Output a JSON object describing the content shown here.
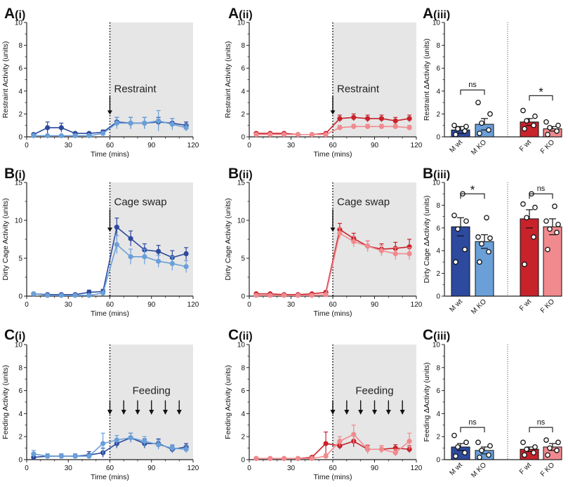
{
  "figure": {
    "colors": {
      "m_wt": "#2d4a9e",
      "m_ko": "#6a9fd8",
      "f_wt": "#c8222b",
      "f_ko": "#f18a8e",
      "shade": "#e6e6e6",
      "axis": "#222222"
    }
  },
  "chart_data": [
    {
      "id": "A-i",
      "type": "line",
      "label": "A",
      "sublabel": "(i)",
      "xlabel": "Time (mins)",
      "ylabel": "Restraint Activity (units)",
      "xlim": [
        0,
        120
      ],
      "ylim": [
        0,
        10
      ],
      "xticks": [
        "0",
        "30",
        "60",
        "90",
        "120"
      ],
      "yticks": [
        "0",
        "2",
        "4",
        "6",
        "8",
        "10"
      ],
      "event_time": 60,
      "annotation": "Restraint",
      "series": [
        {
          "name": "M wt",
          "color": "#2d4a9e",
          "x": [
            5,
            15,
            25,
            35,
            45,
            55,
            65,
            75,
            85,
            95,
            105,
            115
          ],
          "y": [
            0.2,
            0.8,
            0.8,
            0.3,
            0.3,
            0.4,
            1.3,
            1.2,
            1.2,
            1.3,
            1.2,
            1.0
          ],
          "err": [
            0.1,
            0.5,
            0.4,
            0.1,
            0.1,
            0.2,
            0.4,
            0.5,
            0.5,
            0.4,
            0.4,
            0.3
          ]
        },
        {
          "name": "M KO",
          "color": "#6a9fd8",
          "x": [
            5,
            15,
            25,
            35,
            45,
            55,
            65,
            75,
            85,
            95,
            105,
            115
          ],
          "y": [
            0.1,
            0.1,
            0.1,
            0.1,
            0.1,
            0.3,
            1.2,
            1.2,
            1.2,
            1.4,
            1.1,
            0.8
          ],
          "err": [
            0.05,
            0.05,
            0.05,
            0.05,
            0.05,
            0.1,
            0.5,
            0.5,
            0.5,
            0.9,
            0.5,
            0.3
          ]
        }
      ]
    },
    {
      "id": "A-ii",
      "type": "line",
      "label": "A",
      "sublabel": "(ii)",
      "xlabel": "Time (mins)",
      "ylabel": "Restraint Activity (units)",
      "xlim": [
        0,
        120
      ],
      "ylim": [
        0,
        10
      ],
      "xticks": [
        "0",
        "30",
        "60",
        "90",
        "120"
      ],
      "yticks": [
        "0",
        "2",
        "4",
        "6",
        "8",
        "10"
      ],
      "event_time": 60,
      "annotation": "Restraint",
      "series": [
        {
          "name": "F wt",
          "color": "#c8222b",
          "x": [
            5,
            15,
            25,
            35,
            45,
            55,
            65,
            75,
            85,
            95,
            105,
            115
          ],
          "y": [
            0.3,
            0.3,
            0.3,
            0.2,
            0.2,
            0.3,
            1.6,
            1.7,
            1.6,
            1.6,
            1.4,
            1.6
          ],
          "err": [
            0.1,
            0.1,
            0.1,
            0.1,
            0.1,
            0.1,
            0.3,
            0.3,
            0.3,
            0.3,
            0.3,
            0.3
          ]
        },
        {
          "name": "F KO",
          "color": "#f18a8e",
          "x": [
            5,
            15,
            25,
            35,
            45,
            55,
            65,
            75,
            85,
            95,
            105,
            115
          ],
          "y": [
            0.2,
            0.2,
            0.2,
            0.2,
            0.2,
            0.2,
            0.8,
            0.9,
            0.9,
            0.9,
            0.9,
            0.8
          ],
          "err": [
            0.1,
            0.1,
            0.1,
            0.1,
            0.1,
            0.1,
            0.2,
            0.2,
            0.2,
            0.2,
            0.2,
            0.2
          ]
        }
      ]
    },
    {
      "id": "A-iii",
      "type": "bar",
      "label": "A",
      "sublabel": "(iii)",
      "ylabel": "Restraint ΔActivity (units)",
      "ylim": [
        0,
        10
      ],
      "yticks": [
        "0",
        "2",
        "4",
        "6",
        "8",
        "10"
      ],
      "categories": [
        "M wt",
        "M KO",
        "F wt",
        "F KO"
      ],
      "values": [
        0.6,
        1.1,
        1.3,
        0.7
      ],
      "errors": [
        0.3,
        0.5,
        0.3,
        0.2
      ],
      "points": [
        [
          0.2,
          0.5,
          0.7,
          0.9,
          1.0
        ],
        [
          0.3,
          0.6,
          1.2,
          2.0,
          3.0
        ],
        [
          0.7,
          1.0,
          1.4,
          1.8,
          2.3
        ],
        [
          0.2,
          0.5,
          0.8,
          1.0,
          1.3
        ]
      ],
      "colors": [
        "#2d4a9e",
        "#6a9fd8",
        "#c8222b",
        "#f18a8e"
      ],
      "comparisons": [
        {
          "from": "M wt",
          "to": "M KO",
          "text": "ns",
          "level": 4.1
        },
        {
          "from": "F wt",
          "to": "F KO",
          "text": "*",
          "level": 3.6
        }
      ]
    },
    {
      "id": "B-i",
      "type": "line",
      "label": "B",
      "sublabel": "(i)",
      "xlabel": "Time (mins)",
      "ylabel": "Dirty Cage Activity (units)",
      "xlim": [
        0,
        120
      ],
      "ylim": [
        0,
        15
      ],
      "xticks": [
        "0",
        "30",
        "60",
        "90",
        "120"
      ],
      "yticks": [
        "0",
        "5",
        "10",
        "15"
      ],
      "event_time": 60,
      "annotation": "Cage swap",
      "series": [
        {
          "name": "M wt",
          "color": "#2d4a9e",
          "x": [
            5,
            15,
            25,
            35,
            45,
            55,
            65,
            75,
            85,
            95,
            105,
            115
          ],
          "y": [
            0.3,
            0.2,
            0.2,
            0.2,
            0.5,
            0.6,
            9.1,
            7.6,
            6.1,
            5.9,
            5.1,
            5.6
          ],
          "err": [
            0.2,
            0.1,
            0.1,
            0.1,
            0.3,
            0.3,
            1.2,
            1.0,
            0.8,
            0.8,
            0.9,
            0.8
          ]
        },
        {
          "name": "M KO",
          "color": "#6a9fd8",
          "x": [
            5,
            15,
            25,
            35,
            45,
            55,
            65,
            75,
            85,
            95,
            105,
            115
          ],
          "y": [
            0.3,
            0.1,
            0.1,
            0.1,
            0.1,
            0.4,
            6.8,
            5.2,
            5.2,
            4.6,
            4.3,
            3.9
          ],
          "err": [
            0.2,
            0.1,
            0.1,
            0.1,
            0.1,
            0.2,
            1.2,
            1.0,
            1.0,
            0.8,
            0.9,
            0.8
          ]
        }
      ]
    },
    {
      "id": "B-ii",
      "type": "line",
      "label": "B",
      "sublabel": "(ii)",
      "xlabel": "Time (mins)",
      "ylabel": "Dirty Cage Activity (units)",
      "xlim": [
        0,
        120
      ],
      "ylim": [
        0,
        15
      ],
      "xticks": [
        "0",
        "30",
        "60",
        "90",
        "120"
      ],
      "yticks": [
        "0",
        "5",
        "10",
        "15"
      ],
      "event_time": 60,
      "annotation": "Cage swap",
      "series": [
        {
          "name": "F wt",
          "color": "#c8222b",
          "x": [
            5,
            15,
            25,
            35,
            45,
            55,
            65,
            75,
            85,
            95,
            105,
            115
          ],
          "y": [
            0.3,
            0.3,
            0.2,
            0.2,
            0.3,
            0.5,
            8.8,
            7.6,
            6.6,
            6.2,
            6.3,
            6.5
          ],
          "err": [
            0.1,
            0.1,
            0.1,
            0.1,
            0.1,
            0.2,
            0.8,
            0.7,
            0.7,
            0.7,
            0.8,
            1.0
          ]
        },
        {
          "name": "F KO",
          "color": "#f18a8e",
          "x": [
            5,
            15,
            25,
            35,
            45,
            55,
            65,
            75,
            85,
            95,
            105,
            115
          ],
          "y": [
            0.1,
            0.1,
            0.1,
            0.1,
            0.1,
            0.2,
            8.3,
            7.2,
            6.6,
            6.0,
            5.6,
            5.6
          ],
          "err": [
            0.1,
            0.1,
            0.1,
            0.1,
            0.1,
            0.1,
            0.7,
            0.7,
            0.7,
            0.7,
            0.8,
            0.8
          ]
        }
      ]
    },
    {
      "id": "B-iii",
      "type": "bar",
      "label": "B",
      "sublabel": "(iii)",
      "ylabel": "Dirty Cage ΔActivity (units)",
      "ylim": [
        0,
        10
      ],
      "yticks": [
        "0",
        "2",
        "4",
        "6",
        "8",
        "10"
      ],
      "categories": [
        "M wt",
        "M KO",
        "F wt",
        "F KO"
      ],
      "values": [
        6.1,
        4.8,
        6.8,
        6.1
      ],
      "errors": [
        0.8,
        0.6,
        0.8,
        0.7
      ],
      "points": [
        [
          3.0,
          4.1,
          5.9,
          6.6,
          7.1,
          9.0
        ],
        [
          3.0,
          3.9,
          4.6,
          5.1,
          5.2,
          6.9
        ],
        [
          2.8,
          5.2,
          6.9,
          7.8,
          8.1,
          9.0
        ],
        [
          4.1,
          5.6,
          5.9,
          6.3,
          6.6,
          7.9
        ]
      ],
      "colors": [
        "#2d4a9e",
        "#6a9fd8",
        "#c8222b",
        "#f18a8e"
      ],
      "comparisons": [
        {
          "from": "M wt",
          "to": "M KO",
          "text": "*",
          "level": 9.0
        },
        {
          "from": "F wt",
          "to": "F KO",
          "text": "ns",
          "level": 9.0
        }
      ]
    },
    {
      "id": "C-i",
      "type": "line",
      "label": "C",
      "sublabel": "(i)",
      "xlabel": "Time (mins)",
      "ylabel": "Feeding Activity (units)",
      "xlim": [
        0,
        120
      ],
      "ylim": [
        0,
        10
      ],
      "xticks": [
        "0",
        "30",
        "60",
        "90",
        "120"
      ],
      "yticks": [
        "0",
        "2",
        "4",
        "6",
        "8",
        "10"
      ],
      "event_time": 60,
      "annotation": "Feeding",
      "feeding_times": [
        70,
        80,
        90,
        100,
        110
      ],
      "series": [
        {
          "name": "M wt",
          "color": "#2d4a9e",
          "x": [
            5,
            15,
            25,
            35,
            45,
            55,
            65,
            75,
            85,
            95,
            105,
            115
          ],
          "y": [
            0.2,
            0.3,
            0.3,
            0.3,
            0.4,
            0.6,
            1.4,
            1.9,
            1.4,
            1.4,
            0.9,
            1.1
          ],
          "err": [
            0.2,
            0.2,
            0.2,
            0.2,
            0.3,
            0.4,
            0.4,
            0.4,
            0.4,
            0.4,
            0.3,
            0.3
          ]
        },
        {
          "name": "M KO",
          "color": "#6a9fd8",
          "x": [
            5,
            15,
            25,
            35,
            45,
            55,
            65,
            75,
            85,
            95,
            105,
            115
          ],
          "y": [
            0.5,
            0.3,
            0.3,
            0.3,
            0.3,
            1.4,
            1.7,
            1.9,
            1.6,
            1.3,
            1.0,
            0.9
          ],
          "err": [
            0.3,
            0.2,
            0.2,
            0.2,
            0.2,
            0.9,
            0.4,
            0.4,
            0.4,
            0.4,
            0.3,
            0.3
          ]
        }
      ]
    },
    {
      "id": "C-ii",
      "type": "line",
      "label": "C",
      "sublabel": "(ii)",
      "xlabel": "Time (mins)",
      "ylabel": "Feeding Activity (units)",
      "xlim": [
        0,
        120
      ],
      "ylim": [
        0,
        10
      ],
      "xticks": [
        "0",
        "30",
        "60",
        "90",
        "120"
      ],
      "yticks": [
        "0",
        "2",
        "4",
        "6",
        "8",
        "10"
      ],
      "event_time": 60,
      "annotation": "Feeding",
      "feeding_times": [
        70,
        80,
        90,
        100,
        110
      ],
      "series": [
        {
          "name": "F wt",
          "color": "#c8222b",
          "x": [
            5,
            15,
            25,
            35,
            45,
            55,
            65,
            75,
            85,
            95,
            105,
            115
          ],
          "y": [
            0.1,
            0.1,
            0.1,
            0.1,
            0.2,
            1.4,
            1.2,
            1.6,
            0.9,
            0.9,
            1.0,
            0.9
          ],
          "err": [
            0.1,
            0.1,
            0.1,
            0.1,
            0.1,
            1.0,
            0.3,
            0.5,
            0.3,
            0.3,
            0.3,
            0.3
          ]
        },
        {
          "name": "F KO",
          "color": "#f18a8e",
          "x": [
            5,
            15,
            25,
            35,
            45,
            55,
            65,
            75,
            85,
            95,
            105,
            115
          ],
          "y": [
            0.1,
            0.1,
            0.1,
            0.1,
            0.1,
            0.3,
            1.6,
            2.2,
            0.9,
            0.9,
            0.6,
            1.6
          ],
          "err": [
            0.1,
            0.1,
            0.1,
            0.1,
            0.1,
            0.2,
            0.4,
            0.8,
            0.4,
            0.3,
            0.3,
            0.7
          ]
        }
      ]
    },
    {
      "id": "C-iii",
      "type": "bar",
      "label": "C",
      "sublabel": "(iii)",
      "ylabel": "Feeding ΔActivity (units)",
      "ylim": [
        0,
        10
      ],
      "yticks": [
        "0",
        "2",
        "4",
        "6",
        "8",
        "10"
      ],
      "categories": [
        "M wt",
        "M KO",
        "F wt",
        "F KO"
      ],
      "values": [
        1.1,
        0.8,
        0.9,
        1.1
      ],
      "errors": [
        0.3,
        0.3,
        0.2,
        0.3
      ],
      "points": [
        [
          0.3,
          0.6,
          1.1,
          1.5,
          2.1
        ],
        [
          0.2,
          0.4,
          0.8,
          1.2,
          1.5
        ],
        [
          0.4,
          0.6,
          0.9,
          1.1,
          1.5
        ],
        [
          0.4,
          0.8,
          1.0,
          1.5,
          1.7
        ]
      ],
      "colors": [
        "#2d4a9e",
        "#6a9fd8",
        "#c8222b",
        "#f18a8e"
      ],
      "comparisons": [
        {
          "from": "M wt",
          "to": "M KO",
          "text": "ns",
          "level": 2.8
        },
        {
          "from": "F wt",
          "to": "F KO",
          "text": "ns",
          "level": 2.8
        }
      ]
    }
  ]
}
